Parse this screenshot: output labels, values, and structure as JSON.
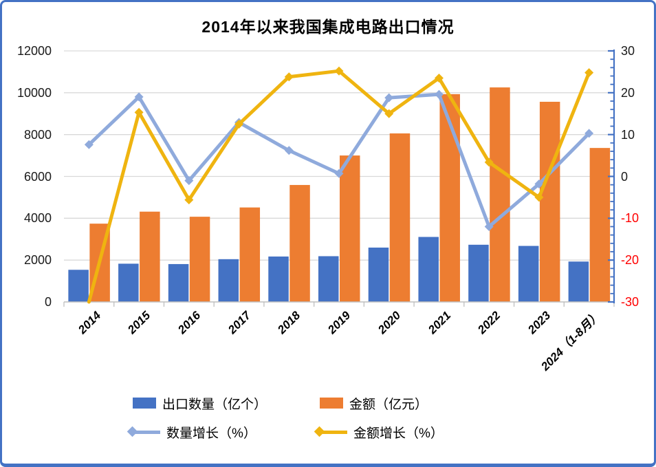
{
  "title": "2014年以来我国集成电路出口情况",
  "chart_data": {
    "type": "combo_bar_line",
    "title": "2014年以来我国集成电路出口情况",
    "categories": [
      "2014",
      "2015",
      "2016",
      "2017",
      "2018",
      "2019",
      "2020",
      "2021",
      "2022",
      "2023",
      "2024（1-8月）"
    ],
    "series": [
      {
        "name": "出口数量（亿个）",
        "type": "bar",
        "axis": "left",
        "color": "#4472C4",
        "values": [
          1536,
          1828,
          1810,
          2044,
          2171,
          2187,
          2598,
          3107,
          2734,
          2678,
          1931
        ]
      },
      {
        "name": "金额（亿元）",
        "type": "bar",
        "axis": "left",
        "color": "#ED7D31",
        "values": [
          3742,
          4316,
          4073,
          4516,
          5591,
          7000,
          8056,
          9933,
          10254,
          9568,
          7360
        ]
      },
      {
        "name": "数量增长（%）",
        "type": "line",
        "axis": "right",
        "color": "#8FAADC",
        "marker": "diamond",
        "values": [
          7.6,
          19.0,
          -1.0,
          12.9,
          6.2,
          0.7,
          18.8,
          19.6,
          -12.0,
          -1.8,
          10.3
        ]
      },
      {
        "name": "金额增长（%）",
        "type": "line",
        "axis": "right",
        "color": "#EFB410",
        "marker": "diamond",
        "first_marker": false,
        "values": [
          -30,
          15.3,
          -5.6,
          12.5,
          23.8,
          25.2,
          15.0,
          23.5,
          3.4,
          -5.0,
          24.8
        ]
      }
    ],
    "axes": {
      "left": {
        "min": 0,
        "max": 12000,
        "step": 2000,
        "tick_labels": [
          "0",
          "2000",
          "4000",
          "6000",
          "8000",
          "10000",
          "12000"
        ]
      },
      "right": {
        "min": -30,
        "max": 30,
        "step": 10,
        "minor_step": 2,
        "tick_labels": [
          "-30",
          "-20",
          "-10",
          "0",
          "10",
          "20",
          "30"
        ],
        "negative_label_color": "#FF0000",
        "axis_color": "#4472C4"
      }
    },
    "grid": true,
    "legend_position": "bottom",
    "colors": {
      "gridline": "#D9D9D9",
      "x_axis": "#BFBFBF",
      "frame_border": "#4472C4",
      "background": "#FFFFFF"
    }
  }
}
